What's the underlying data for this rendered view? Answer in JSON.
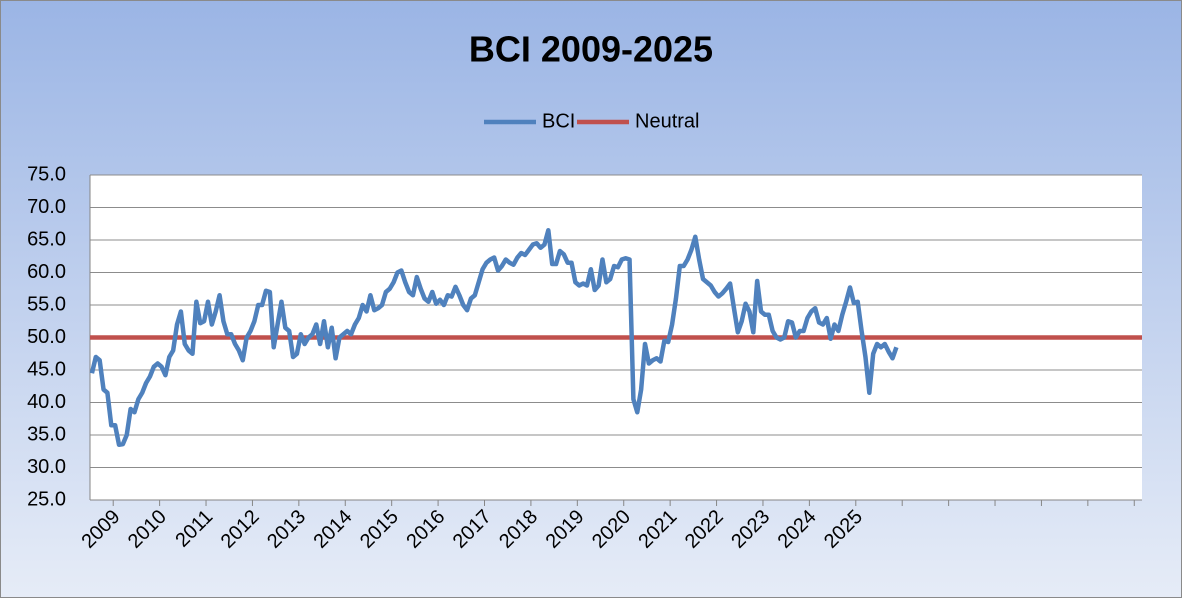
{
  "chart_data": {
    "type": "line",
    "title": "BCI 2009-2025",
    "categories": [
      null,
      null,
      null,
      null,
      null,
      null,
      "2009",
      null,
      null,
      null,
      null,
      null,
      null,
      null,
      null,
      null,
      null,
      null,
      "2010",
      null,
      null,
      null,
      null,
      null,
      null,
      null,
      null,
      null,
      null,
      null,
      "2011",
      null,
      null,
      null,
      null,
      null,
      null,
      null,
      null,
      null,
      null,
      null,
      "2012",
      null,
      null,
      null,
      null,
      null,
      null,
      null,
      null,
      null,
      null,
      null,
      "2013",
      null,
      null,
      null,
      null,
      null,
      null,
      null,
      null,
      null,
      null,
      null,
      "2014",
      null,
      null,
      null,
      null,
      null,
      null,
      null,
      null,
      null,
      null,
      null,
      "2015",
      null,
      null,
      null,
      null,
      null,
      null,
      null,
      null,
      null,
      null,
      null,
      "2016",
      null,
      null,
      null,
      null,
      null,
      null,
      null,
      null,
      null,
      null,
      null,
      "2017",
      null,
      null,
      null,
      null,
      null,
      null,
      null,
      null,
      null,
      null,
      null,
      "2018",
      null,
      null,
      null,
      null,
      null,
      null,
      null,
      null,
      null,
      null,
      null,
      "2019",
      null,
      null,
      null,
      null,
      null,
      null,
      null,
      null,
      null,
      null,
      null,
      "2020",
      null,
      null,
      null,
      null,
      null,
      null,
      null,
      null,
      null,
      null,
      null,
      "2021",
      null,
      null,
      null,
      null,
      null,
      null,
      null,
      null,
      null,
      null,
      null,
      "2022",
      null,
      null,
      null,
      null,
      null,
      null,
      null,
      null,
      null,
      null,
      null,
      "2023",
      null,
      null,
      null,
      null,
      null,
      null,
      null,
      null,
      null,
      null,
      null,
      "2024",
      null,
      null,
      null,
      null,
      null,
      null,
      null,
      null,
      null,
      null,
      null,
      "2025",
      null,
      null,
      null,
      null,
      null,
      null,
      null,
      null,
      null,
      null,
      null,
      null,
      null,
      null,
      null,
      null,
      null,
      null,
      null,
      null,
      null,
      null,
      null,
      null,
      null,
      null,
      null,
      null,
      null,
      null,
      null,
      null,
      null,
      null,
      null,
      null,
      null,
      null,
      null,
      null,
      null,
      null,
      null,
      null,
      null,
      null,
      null,
      null,
      null,
      null,
      null,
      null,
      null,
      null,
      null,
      null,
      null,
      null,
      null,
      null,
      null,
      null,
      null,
      null,
      null,
      null,
      null,
      null,
      null,
      null,
      null,
      null,
      null
    ],
    "series": [
      {
        "name": "BCI",
        "color": "#4f81bd",
        "values": [
          44.5,
          47,
          46.5,
          42,
          41.5,
          36.5,
          36.5,
          33.5,
          33.6,
          35,
          39,
          38.5,
          40.5,
          41.5,
          43,
          44,
          45.5,
          46,
          45.5,
          44.2,
          47,
          48,
          52,
          54,
          49,
          48,
          47.5,
          55.5,
          52.2,
          52.5,
          55.5,
          52,
          54,
          56.5,
          52.5,
          50.5,
          50.5,
          49,
          48,
          46.5,
          50,
          51,
          52.5,
          55,
          55,
          57.2,
          57,
          48.5,
          52,
          55.5,
          51.5,
          51,
          47,
          47.5,
          50.5,
          49,
          50,
          50.5,
          52,
          49,
          52.5,
          48.5,
          51.5,
          46.8,
          50,
          50.5,
          51,
          50.5,
          52,
          53,
          55,
          54,
          56.5,
          54.2,
          54.5,
          55,
          57,
          57.5,
          58.5,
          60,
          60.3,
          58.5,
          57,
          56.5,
          59.3,
          57.5,
          56,
          55.5,
          57,
          55.2,
          55.8,
          55,
          56.5,
          56.3,
          57.8,
          56.5,
          55,
          54.2,
          56,
          56.5,
          58.5,
          60.5,
          61.5,
          62,
          62.3,
          60.3,
          61,
          62,
          61.5,
          61.2,
          62.3,
          63,
          62.7,
          63.5,
          64.3,
          64.5,
          63.8,
          64.3,
          66.5,
          61.3,
          61.3,
          63.3,
          62.8,
          61.5,
          61.5,
          58.5,
          58,
          58.3,
          58,
          60.5,
          57.3,
          58,
          62,
          58.5,
          59,
          61,
          60.8,
          62,
          62.2,
          62,
          40.5,
          38.5,
          42,
          49,
          46,
          46.5,
          46.8,
          46.3,
          49.5,
          49.3,
          52,
          56,
          61,
          61,
          62,
          63.5,
          65.5,
          62,
          59,
          58.5,
          58,
          57,
          56.3,
          56.8,
          57.5,
          58.3,
          54.5,
          50.8,
          52.5,
          55.2,
          54,
          50.8,
          58.7,
          54,
          53.5,
          53.5,
          51,
          50,
          49.7,
          50,
          52.5,
          52.3,
          50,
          51,
          51,
          53,
          54,
          54.5,
          52.3,
          52,
          53,
          49.8,
          52,
          51,
          53.5,
          55.5,
          57.7,
          55.3,
          55.5,
          51,
          47,
          41.5,
          47.5,
          49,
          48.5,
          49,
          47.8,
          46.8,
          48.5,
          null,
          null,
          null,
          null,
          null,
          null,
          null,
          null,
          null,
          null,
          null,
          null,
          null,
          null,
          null,
          null,
          null,
          null,
          null,
          null,
          null,
          null,
          null,
          null,
          null,
          null,
          null,
          null,
          null,
          null,
          null,
          null,
          null,
          null,
          null,
          null,
          null,
          null,
          null,
          null,
          null,
          null,
          null,
          null,
          null,
          null,
          null,
          null,
          null,
          null,
          null,
          null,
          null,
          null,
          null,
          null,
          null,
          null,
          null,
          null,
          null,
          null,
          null
        ]
      },
      {
        "name": "Neutral",
        "color": "#c0504d",
        "value": 50
      }
    ],
    "ylim": [
      25,
      75
    ],
    "yticks": [
      {
        "value": 25,
        "label": "25.0"
      },
      {
        "value": 30,
        "label": "30.0"
      },
      {
        "value": 35,
        "label": "35.0"
      },
      {
        "value": 40,
        "label": "40.0"
      },
      {
        "value": 45,
        "label": "45.0"
      },
      {
        "value": 50,
        "label": "50.0"
      },
      {
        "value": 55,
        "label": "55.0"
      },
      {
        "value": 60,
        "label": "60.0"
      },
      {
        "value": 65,
        "label": "65.0"
      },
      {
        "value": 70,
        "label": "70.0"
      },
      {
        "value": 75,
        "label": "75.0"
      }
    ],
    "grid": true,
    "legend": "top"
  }
}
